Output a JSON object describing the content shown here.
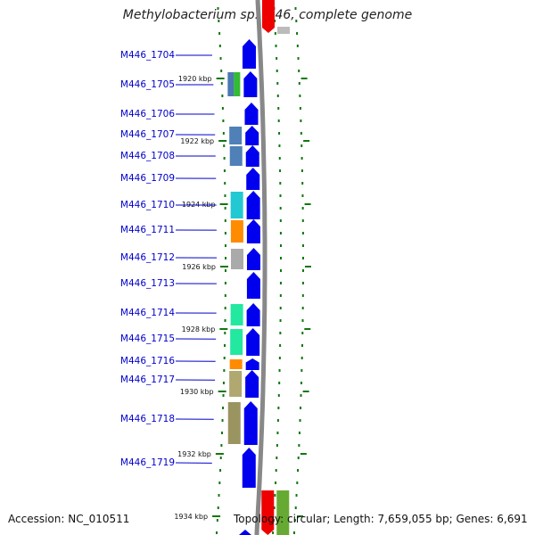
{
  "title": "Methylobacterium sp. 4-46, complete genome",
  "footer": {
    "accession": "Accession: NC_010511",
    "topology": "Topology: circular; Length: 7,659,055 bp; Genes: 6,691"
  },
  "colors": {
    "gene_arrow": "#0000ee",
    "label_text": "#0000cc",
    "tick_green": "#117711",
    "backbone": "#888888",
    "reverse_gene": "#ee0000"
  },
  "ruler_ticks": [
    "1920 kbp",
    "1922 kbp",
    "1924 kbp",
    "1926 kbp",
    "1928 kbp",
    "1930 kbp",
    "1932 kbp",
    "1934 kbp"
  ],
  "genes": [
    {
      "label": "M446_1704",
      "cog_colors": []
    },
    {
      "label": "M446_1705",
      "cog_colors": [
        "#4a78b0",
        "#33bb33"
      ]
    },
    {
      "label": "M446_1706",
      "cog_colors": []
    },
    {
      "label": "M446_1707",
      "cog_colors": [
        "#4f80b8"
      ]
    },
    {
      "label": "M446_1708",
      "cog_colors": [
        "#4f80b8"
      ]
    },
    {
      "label": "M446_1709",
      "cog_colors": []
    },
    {
      "label": "M446_1710",
      "cog_colors": [
        "#22c8d2"
      ]
    },
    {
      "label": "M446_1711",
      "cog_colors": [
        "#ff8c00"
      ]
    },
    {
      "label": "M446_1712",
      "cog_colors": [
        "#aaaaaa"
      ]
    },
    {
      "label": "M446_1713",
      "cog_colors": []
    },
    {
      "label": "M446_1714",
      "cog_colors": [
        "#22e8a0"
      ]
    },
    {
      "label": "M446_1715",
      "cog_colors": [
        "#22e8a0"
      ]
    },
    {
      "label": "M446_1716",
      "cog_colors": [
        "#ff8c00"
      ]
    },
    {
      "label": "M446_1717",
      "cog_colors": [
        "#b0a870"
      ]
    },
    {
      "label": "M446_1718",
      "cog_colors": [
        "#9a9460"
      ]
    },
    {
      "label": "M446_1719",
      "cog_colors": []
    }
  ],
  "other_strand_genes": [
    {
      "cog_colors": [
        "#ee0000",
        "#bbbbbb"
      ]
    },
    {
      "cog_colors": [
        "#ee0000",
        "#66aa33"
      ]
    }
  ]
}
